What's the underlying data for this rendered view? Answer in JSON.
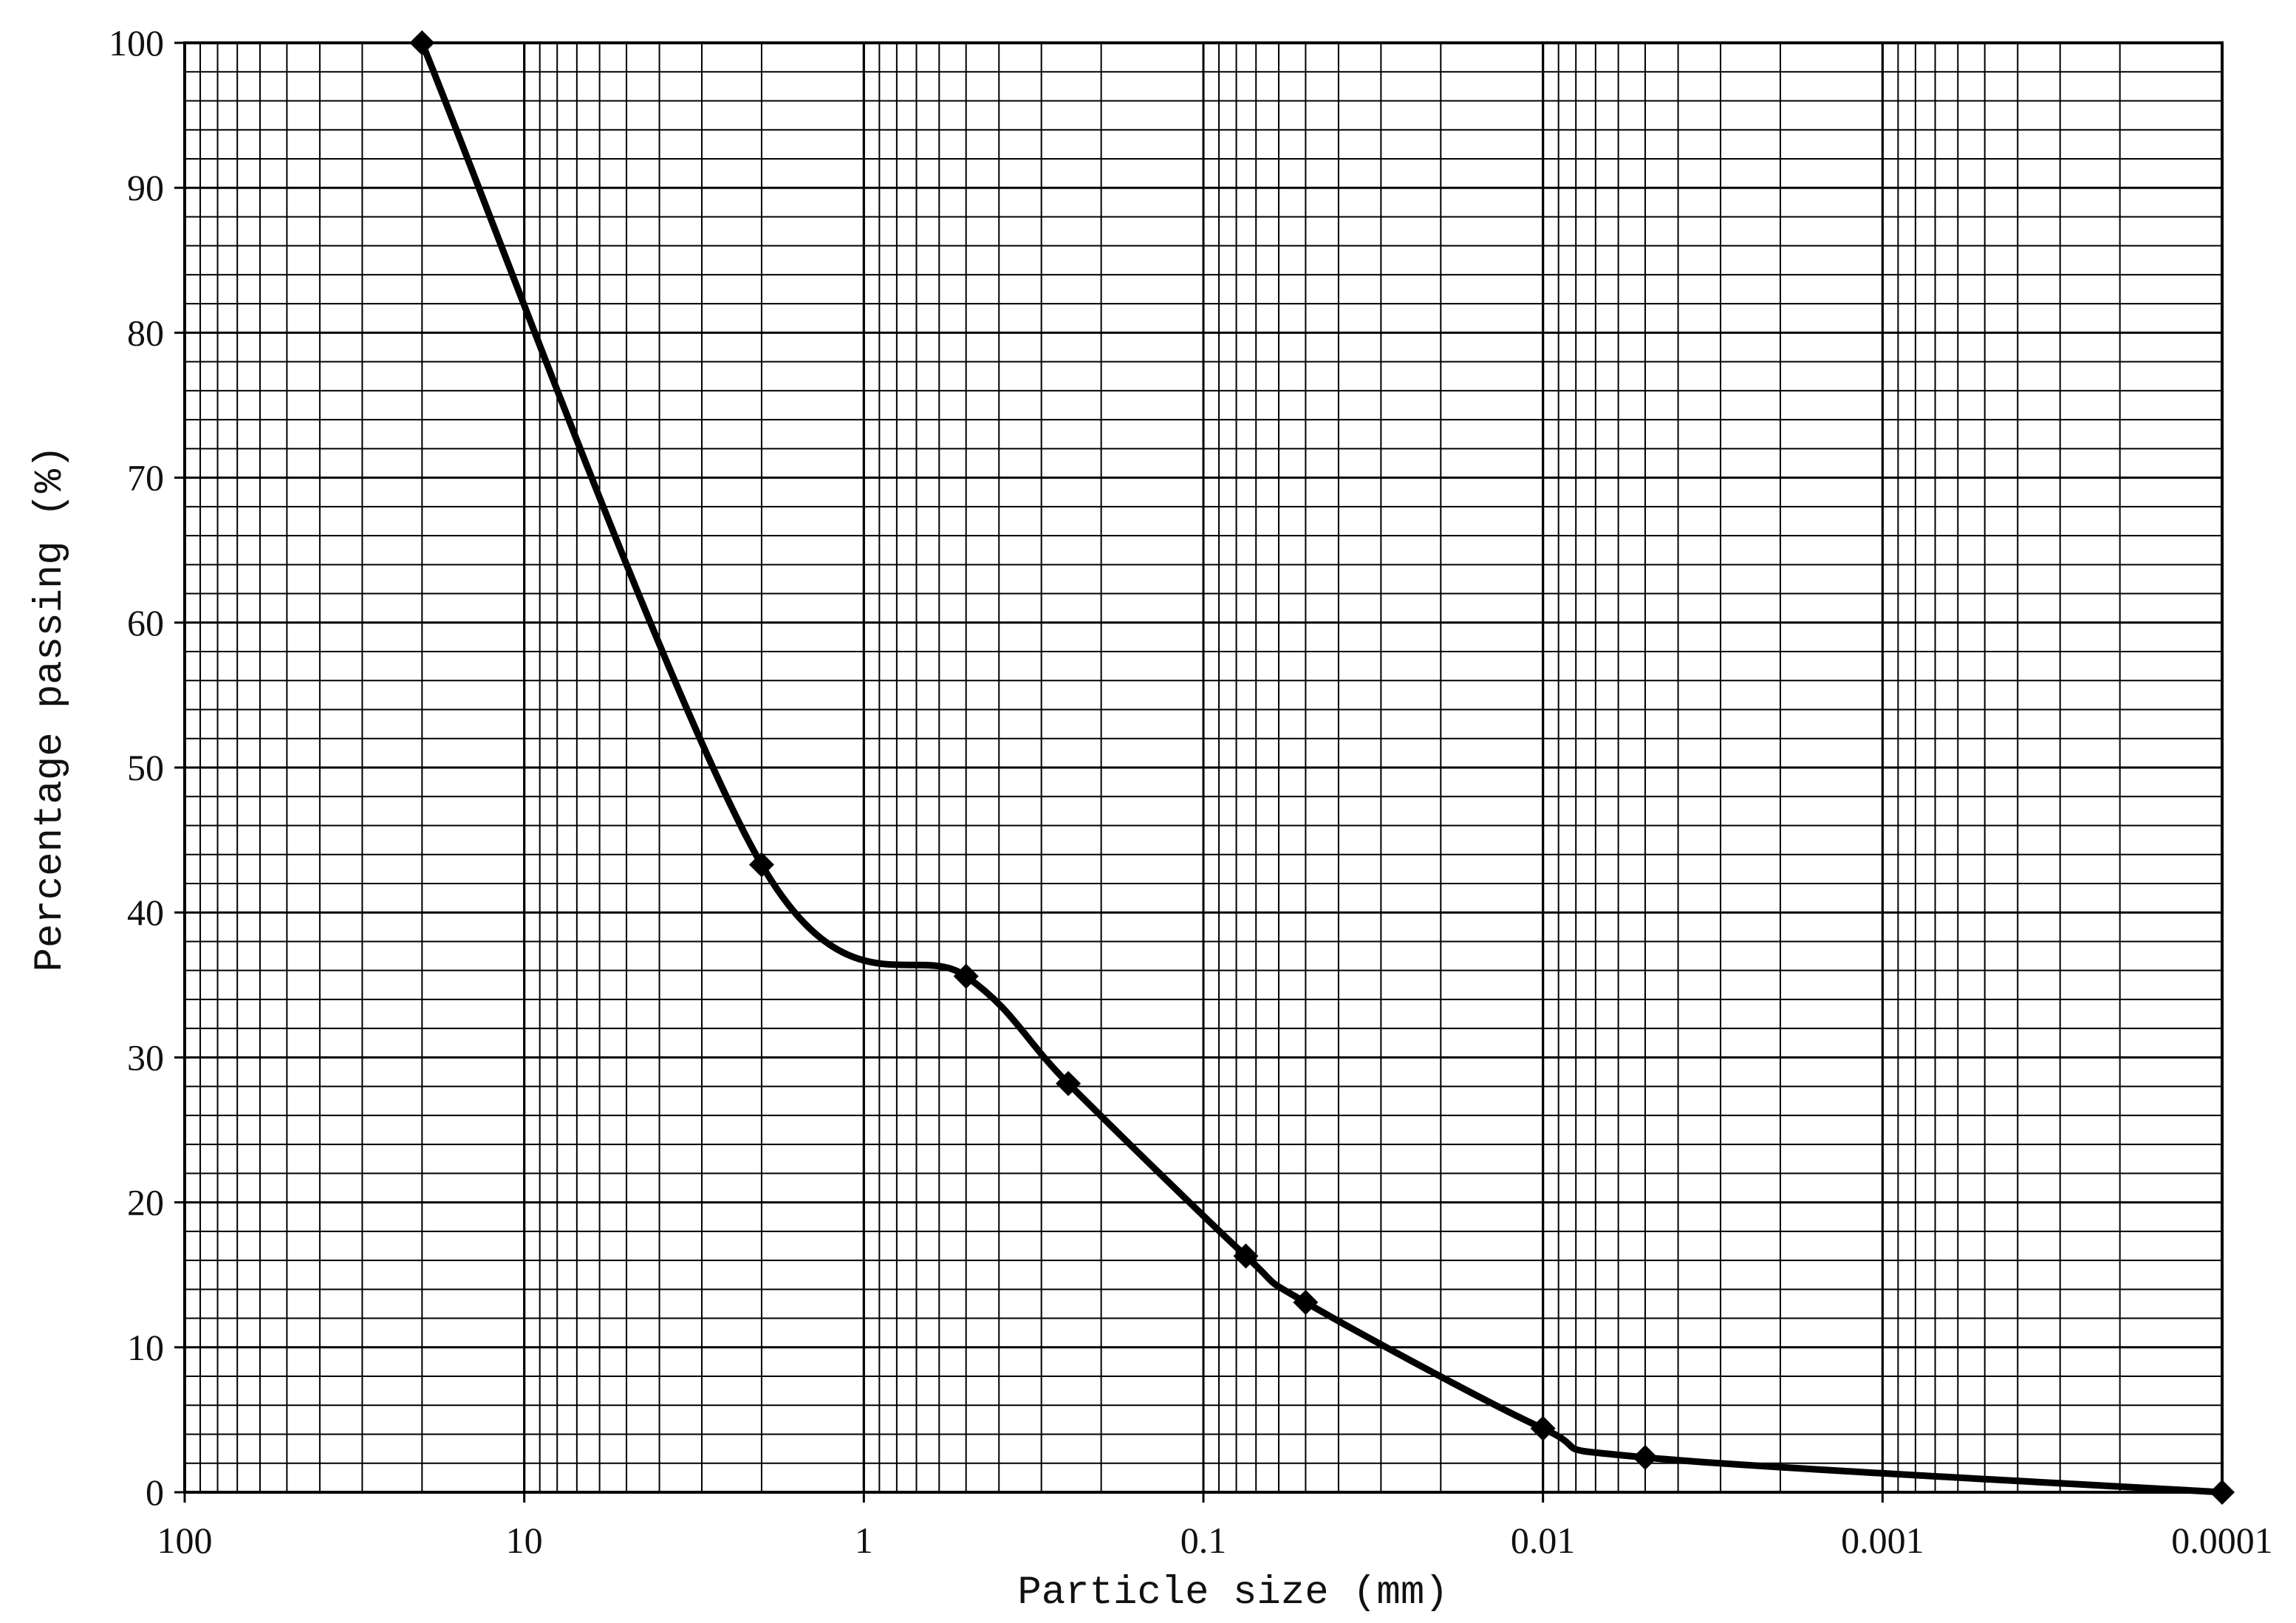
{
  "chart_data": {
    "type": "line",
    "title": "",
    "xlabel": "Particle size (mm)",
    "ylabel": "Percentage passing (%)",
    "x_scale": "log",
    "x_reversed": true,
    "xlim": [
      100,
      0.0001
    ],
    "ylim": [
      0,
      100
    ],
    "grid": true,
    "line_color": "#000000",
    "marker": "diamond",
    "x_ticks": [
      "100",
      "10",
      "1",
      "0.1",
      "0.01",
      "0.001",
      "0.0001"
    ],
    "y_ticks": [
      "0",
      "10",
      "20",
      "30",
      "40",
      "50",
      "60",
      "70",
      "80",
      "90",
      "100"
    ],
    "series": [
      {
        "x": [
          20,
          2,
          0.5,
          0.25,
          0.075,
          0.05,
          0.01,
          0.005,
          0.0001
        ],
        "y": [
          100,
          43.3,
          35.6,
          28.2,
          16.3,
          13.1,
          4.4,
          2.4,
          0.0
        ]
      }
    ]
  }
}
